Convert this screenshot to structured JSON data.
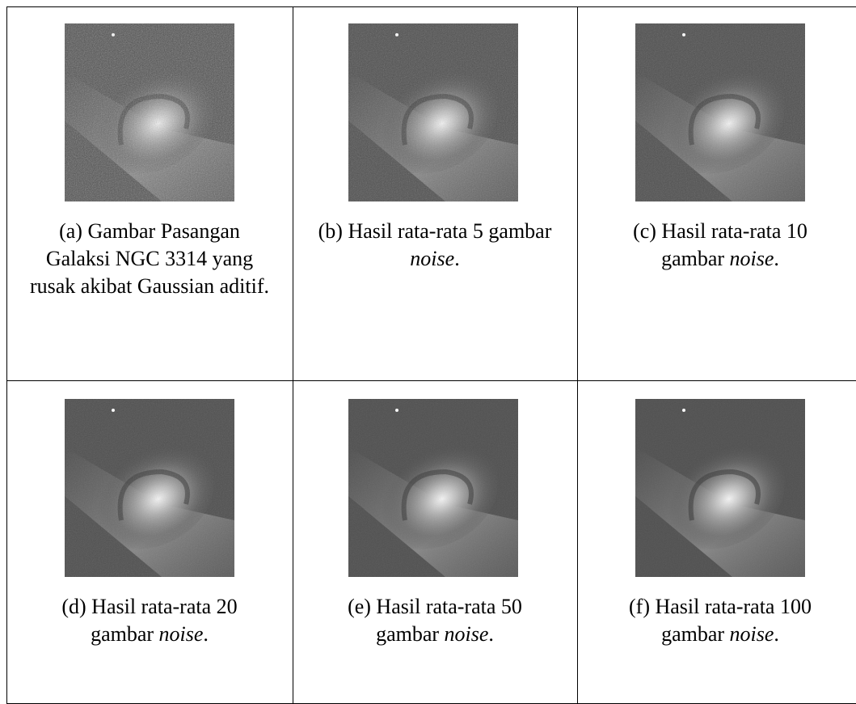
{
  "table": {
    "rows": [
      [
        {
          "text": "(a) Gambar Pasangan Galaksi NGC 3314 yang rusak akibat Gaussian aditif."
        },
        {
          "text": "(b) Hasil rata-rata 5 gambar ",
          "em": "noise",
          "end": "."
        },
        {
          "text": "(c) Hasil rata-rata 10 gambar ",
          "em": "noise",
          "end": "."
        }
      ],
      [
        {
          "text": "(d) Hasil rata-rata 20 gambar ",
          "em": "noise",
          "end": "."
        },
        {
          "text": "(e) Hasil rata-rata 50 gambar ",
          "em": "noise",
          "end": "."
        },
        {
          "text": "(f) Hasil rata-rata 100 gambar ",
          "em": "noise",
          "end": "."
        }
      ]
    ]
  }
}
